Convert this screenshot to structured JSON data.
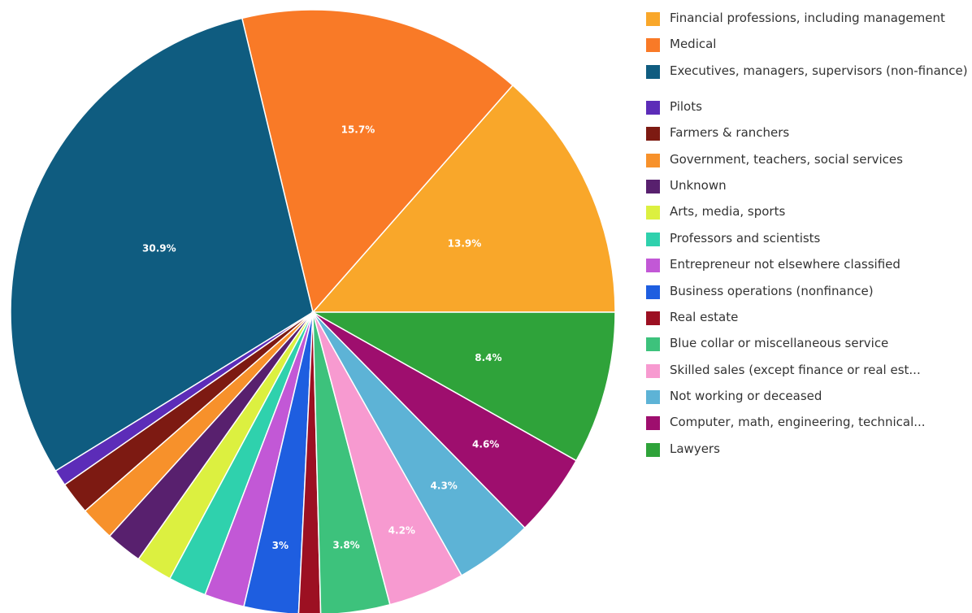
{
  "chart_data": {
    "type": "pie",
    "title": "",
    "slices": [
      {
        "name": "Financial professions, including management",
        "value": 13.9,
        "label": "13.9%",
        "color": "#f9a72a"
      },
      {
        "name": "Medical",
        "value": 15.7,
        "label": "15.7%",
        "color": "#f97a27"
      },
      {
        "name": "Executives, managers, supervisors (non-finance)",
        "value": 30.9,
        "label": "30.9%",
        "color": "#0f5c80"
      },
      {
        "name": "Pilots",
        "value": 0.9,
        "label": "",
        "color": "#5c2cb8"
      },
      {
        "name": "Farmers & ranchers",
        "value": 1.8,
        "label": "",
        "color": "#7d1a12"
      },
      {
        "name": "Government, teachers, social services",
        "value": 1.9,
        "label": "",
        "color": "#f7912b"
      },
      {
        "name": "Unknown",
        "value": 2.0,
        "label": "",
        "color": "#58206e"
      },
      {
        "name": "Arts, media, sports",
        "value": 2.0,
        "label": "",
        "color": "#dcf040"
      },
      {
        "name": "Professors and scientists",
        "value": 2.1,
        "label": "",
        "color": "#2fd1ad"
      },
      {
        "name": "Entrepreneur not elsewhere classified",
        "value": 2.2,
        "label": "",
        "color": "#c258d6"
      },
      {
        "name": "Business operations (nonfinance)",
        "value": 3.0,
        "label": "3%",
        "color": "#1e5ee0"
      },
      {
        "name": "Real estate",
        "value": 1.2,
        "label": "",
        "color": "#9c1022"
      },
      {
        "name": "Blue collar or miscellaneous service",
        "value": 3.8,
        "label": "3.8%",
        "color": "#3dc27c"
      },
      {
        "name": "Skilled sales (except finance or real est...",
        "value": 4.2,
        "label": "4.2%",
        "color": "#f79ad0"
      },
      {
        "name": "Not working or deceased",
        "value": 4.3,
        "label": "4.3%",
        "color": "#5db3d6"
      },
      {
        "name": "Computer, math, engineering, technical...",
        "value": 4.6,
        "label": "4.6%",
        "color": "#9e0e6e"
      },
      {
        "name": "Lawyers",
        "value": 8.4,
        "label": "8.4%",
        "color": "#2fa33a"
      }
    ],
    "legend_placement": "right"
  },
  "legend": {
    "items": [
      {
        "label": "Financial professions, including management",
        "color": "#f9a72a"
      },
      {
        "label": "Medical",
        "color": "#f97a27"
      },
      {
        "label": "Executives, managers, supervisors (non-finance)",
        "color": "#0f5c80"
      },
      {
        "label": "Pilots",
        "color": "#5c2cb8"
      },
      {
        "label": "Farmers & ranchers",
        "color": "#7d1a12"
      },
      {
        "label": "Government, teachers, social services",
        "color": "#f7912b"
      },
      {
        "label": "Unknown",
        "color": "#58206e"
      },
      {
        "label": "Arts, media, sports",
        "color": "#dcf040"
      },
      {
        "label": "Professors and scientists",
        "color": "#2fd1ad"
      },
      {
        "label": "Entrepreneur not elsewhere classified",
        "color": "#c258d6"
      },
      {
        "label": "Business operations (nonfinance)",
        "color": "#1e5ee0"
      },
      {
        "label": "Real estate",
        "color": "#9c1022"
      },
      {
        "label": "Blue collar or miscellaneous service",
        "color": "#3dc27c"
      },
      {
        "label": "Skilled sales (except finance or real est...",
        "color": "#f79ad0"
      },
      {
        "label": "Not working or deceased",
        "color": "#5db3d6"
      },
      {
        "label": "Computer, math, engineering, technical...",
        "color": "#9e0e6e"
      },
      {
        "label": "Lawyers",
        "color": "#2fa33a"
      }
    ]
  }
}
